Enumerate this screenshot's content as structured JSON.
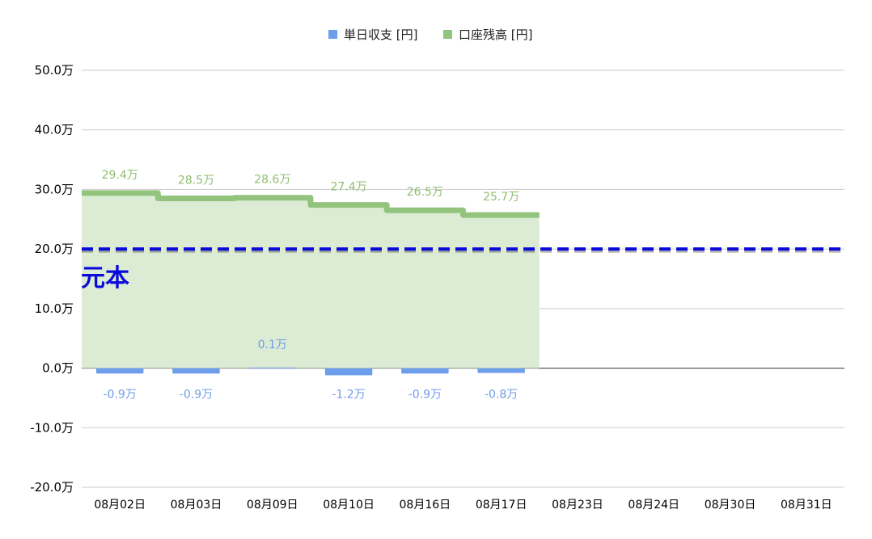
{
  "chart_data": {
    "type": "bar",
    "categories": [
      "08月02日",
      "08月03日",
      "08月09日",
      "08月10日",
      "08月16日",
      "08月17日",
      "08月23日",
      "08月24日",
      "08月30日",
      "08月31日"
    ],
    "series": [
      {
        "name": "単日収支 [円]",
        "kind": "bar",
        "color": "#6d9eeb",
        "values": [
          -9000,
          -9000,
          1000,
          -12000,
          -9000,
          -8000,
          null,
          null,
          null,
          null
        ],
        "labels": [
          "-0.9万",
          "-0.9万",
          "0.1万",
          "-1.2万",
          "-0.9万",
          "-0.8万",
          "",
          "",
          "",
          ""
        ]
      },
      {
        "name": "口座残高 [円]",
        "kind": "stepped-area",
        "color": "#93c47d",
        "fill": "#dcecd4",
        "values": [
          294000,
          285000,
          286000,
          274000,
          265000,
          257000,
          null,
          null,
          null,
          null
        ],
        "labels": [
          "29.4万",
          "28.5万",
          "28.6万",
          "27.4万",
          "26.5万",
          "25.7万",
          "",
          "",
          "",
          ""
        ]
      }
    ],
    "reference_line": {
      "label": "元本",
      "value": 200000,
      "color": "#0b0bd9"
    },
    "ylim": [
      -200000,
      500000
    ],
    "yticks": [
      500000,
      400000,
      300000,
      200000,
      100000,
      0,
      -100000,
      -200000
    ],
    "ytick_labels": [
      "50.0万",
      "40.0万",
      "30.0万",
      "20.0万",
      "10.0万",
      "0.0万",
      "-10.0万",
      "-20.0万"
    ],
    "grid": true,
    "legend_position": "top-center",
    "title": "",
    "xlabel": "",
    "ylabel": ""
  }
}
